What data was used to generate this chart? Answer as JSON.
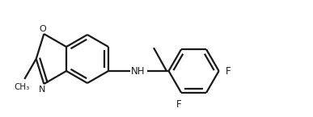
{
  "background_color": "#ffffff",
  "line_color": "#1a1a1a",
  "line_width": 1.6,
  "doff": 0.012,
  "figsize": [
    3.87,
    1.45
  ],
  "dpi": 100,
  "xlim": [
    0,
    387
  ],
  "ylim": [
    0,
    145
  ]
}
